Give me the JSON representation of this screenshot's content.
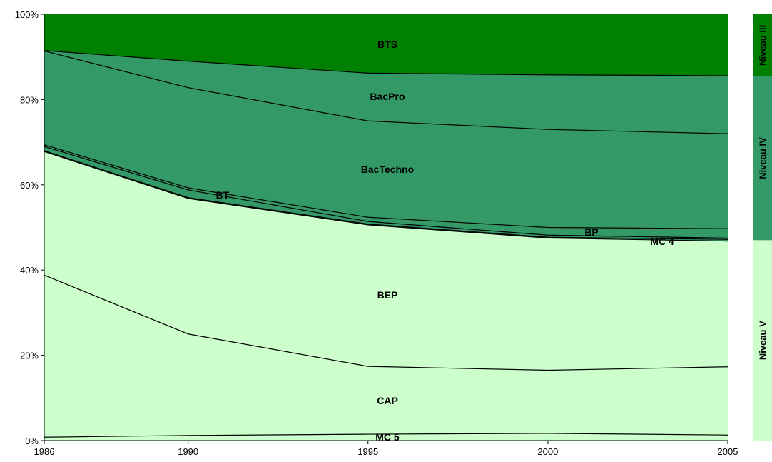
{
  "chart_data": {
    "type": "area",
    "stacked": true,
    "percent": true,
    "x": [
      1986,
      1990,
      1995,
      2000,
      2005
    ],
    "y_ticks": [
      "0%",
      "20%",
      "40%",
      "60%",
      "80%",
      "100%"
    ],
    "ylim": [
      0,
      100
    ],
    "grid": false,
    "series": [
      {
        "name": "MC 5",
        "values": [
          0.8,
          1.2,
          1.5,
          1.7,
          1.3
        ],
        "color": "#ccffcc"
      },
      {
        "name": "CAP",
        "values": [
          38.0,
          23.8,
          15.9,
          14.8,
          16.0
        ],
        "color": "#ccffcc"
      },
      {
        "name": "BEP",
        "values": [
          29.0,
          31.8,
          33.2,
          31.0,
          29.5
        ],
        "color": "#ccffcc"
      },
      {
        "name": "MC 4",
        "values": [
          0.2,
          0.2,
          0.2,
          0.2,
          0.4
        ],
        "color": "#339966"
      },
      {
        "name": "BP",
        "values": [
          1.0,
          1.8,
          0.6,
          0.5,
          0.3
        ],
        "color": "#339966"
      },
      {
        "name": "BT",
        "values": [
          0.4,
          0.5,
          1.0,
          1.8,
          2.2
        ],
        "color": "#339966"
      },
      {
        "name": "BacTechno",
        "values": [
          22.0,
          23.5,
          22.6,
          23.0,
          22.3
        ],
        "color": "#339966"
      },
      {
        "name": "BacPro",
        "values": [
          0.1,
          6.2,
          11.2,
          12.8,
          13.6
        ],
        "color": "#339966"
      },
      {
        "name": "BTS",
        "values": [
          8.5,
          11.0,
          13.8,
          14.2,
          14.4
        ],
        "color": "#008000"
      }
    ],
    "area_labels": [
      {
        "text": "BTS"
      },
      {
        "text": "BacPro"
      },
      {
        "text": "BacTechno"
      },
      {
        "text": "BT"
      },
      {
        "text": "BP"
      },
      {
        "text": "MC 4"
      },
      {
        "text": "BEP"
      },
      {
        "text": "CAP"
      },
      {
        "text": "MC 5"
      }
    ],
    "levels": [
      {
        "name": "Niveau III",
        "from": 85.5,
        "to": 100,
        "color": "#008000"
      },
      {
        "name": "Niveau IV",
        "from": 47,
        "to": 85.5,
        "color": "#339966"
      },
      {
        "name": "Niveau V",
        "from": 0,
        "to": 47,
        "color": "#ccffcc"
      }
    ]
  }
}
